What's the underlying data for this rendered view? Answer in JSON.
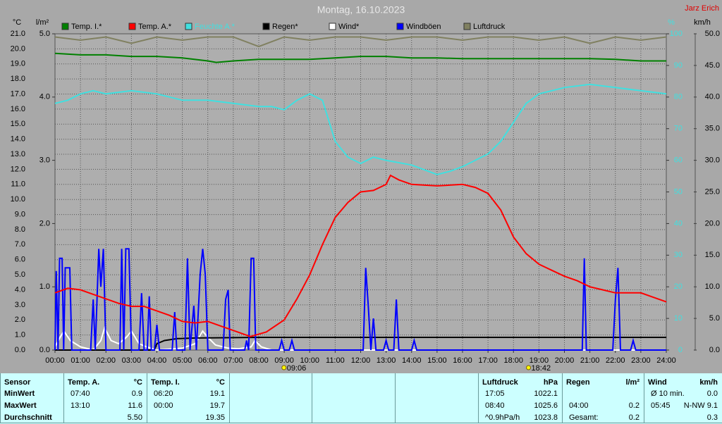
{
  "chart_data": {
    "type": "line",
    "title": "Montag, 16.10.2023",
    "author": "Jarz Erich",
    "y_label": "°C",
    "y2_label": "l/m²",
    "y3_label": "%",
    "y4_label": "km/h",
    "xlim": [
      0,
      24
    ],
    "xticks": [
      {
        "value": 0,
        "label": "00:00"
      },
      {
        "value": 1,
        "label": "01:00"
      },
      {
        "value": 2,
        "label": "02:00"
      },
      {
        "value": 3,
        "label": "03:00"
      },
      {
        "value": 4,
        "label": "04:00"
      },
      {
        "value": 5,
        "label": "05:00"
      },
      {
        "value": 6,
        "label": "06:00"
      },
      {
        "value": 7,
        "label": "07:00"
      },
      {
        "value": 8,
        "label": "08:00"
      },
      {
        "value": 9,
        "label": "09:00"
      },
      {
        "value": 10,
        "label": "10:00"
      },
      {
        "value": 11,
        "label": "11:00"
      },
      {
        "value": 12,
        "label": "12:00"
      },
      {
        "value": 13,
        "label": "13:00"
      },
      {
        "value": 14,
        "label": "14:00"
      },
      {
        "value": 15,
        "label": "15:00"
      },
      {
        "value": 16,
        "label": "16:00"
      },
      {
        "value": 17,
        "label": "17:00"
      },
      {
        "value": 18,
        "label": "18:00"
      },
      {
        "value": 19,
        "label": "19:00"
      },
      {
        "value": 20,
        "label": "20:00"
      },
      {
        "value": 21,
        "label": "21:00"
      },
      {
        "value": 22,
        "label": "22:00"
      },
      {
        "value": 23,
        "label": "23:00"
      },
      {
        "value": 24,
        "label": "24:00"
      }
    ],
    "ylim": [
      0,
      21
    ],
    "yticks": [
      {
        "value": 0,
        "label": "0.0"
      },
      {
        "value": 1,
        "label": "1.0"
      },
      {
        "value": 2,
        "label": "2.0"
      },
      {
        "value": 3,
        "label": "3.0"
      },
      {
        "value": 4,
        "label": "4.0"
      },
      {
        "value": 5,
        "label": "5.0"
      },
      {
        "value": 6,
        "label": "6.0"
      },
      {
        "value": 7,
        "label": "7.0"
      },
      {
        "value": 8,
        "label": "8.0"
      },
      {
        "value": 9,
        "label": "9.0"
      },
      {
        "value": 10,
        "label": "10.0"
      },
      {
        "value": 11,
        "label": "11.0"
      },
      {
        "value": 12,
        "label": "12.0"
      },
      {
        "value": 13,
        "label": "13.0"
      },
      {
        "value": 14,
        "label": "14.0"
      },
      {
        "value": 15,
        "label": "15.0"
      },
      {
        "value": 16,
        "label": "16.0"
      },
      {
        "value": 17,
        "label": "17.0"
      },
      {
        "value": 18,
        "label": "18.0"
      },
      {
        "value": 19,
        "label": "19.0"
      },
      {
        "value": 20,
        "label": "20.0"
      },
      {
        "value": 21,
        "label": "21.0"
      }
    ],
    "y2lim": [
      0,
      5
    ],
    "y2ticks": [
      {
        "value": 0,
        "label": "0.0"
      },
      {
        "value": 1,
        "label": "1.0"
      },
      {
        "value": 2,
        "label": "2.0"
      },
      {
        "value": 3,
        "label": "3.0"
      },
      {
        "value": 4,
        "label": "4.0"
      },
      {
        "value": 5,
        "label": "5.0"
      }
    ],
    "y3lim": [
      0,
      100
    ],
    "y3ticks": [
      0,
      10,
      20,
      30,
      40,
      50,
      60,
      70,
      80,
      90,
      100
    ],
    "y4lim": [
      0,
      50
    ],
    "y4ticks": [
      {
        "value": 0,
        "label": "0.0"
      },
      {
        "value": 5,
        "label": "5.0"
      },
      {
        "value": 10,
        "label": "10.0"
      },
      {
        "value": 15,
        "label": "15.0"
      },
      {
        "value": 20,
        "label": "20.0"
      },
      {
        "value": 25,
        "label": "25.0"
      },
      {
        "value": 30,
        "label": "30.0"
      },
      {
        "value": 35,
        "label": "35.0"
      },
      {
        "value": 40,
        "label": "40.0"
      },
      {
        "value": 45,
        "label": "45.0"
      },
      {
        "value": 50,
        "label": "50.0"
      }
    ],
    "grid": true,
    "series": [
      {
        "name": "Temp. I.*",
        "color": "#008000",
        "axis": "y",
        "x": [
          0,
          1,
          2,
          3,
          4,
          5,
          6,
          6.33,
          7,
          8,
          9,
          10,
          11,
          12,
          13,
          14,
          15,
          16,
          17,
          18,
          19,
          20,
          21,
          22,
          23,
          24
        ],
        "values": [
          19.7,
          19.6,
          19.6,
          19.5,
          19.5,
          19.4,
          19.2,
          19.1,
          19.2,
          19.3,
          19.3,
          19.3,
          19.4,
          19.5,
          19.5,
          19.4,
          19.4,
          19.35,
          19.35,
          19.35,
          19.35,
          19.35,
          19.35,
          19.3,
          19.2,
          19.2
        ]
      },
      {
        "name": "Temp. A.*",
        "color": "#ff0000",
        "axis": "y",
        "x": [
          0,
          0.5,
          1,
          1.5,
          2,
          2.5,
          3,
          3.5,
          4,
          4.5,
          5,
          5.5,
          6,
          6.5,
          7,
          7.67,
          8.3,
          9,
          9.5,
          10,
          10.5,
          11,
          11.5,
          12,
          12.5,
          13,
          13.17,
          13.5,
          14,
          15,
          16,
          16.5,
          17,
          17.5,
          18,
          18.5,
          19,
          19.5,
          20,
          20.5,
          21,
          21.5,
          22,
          22.5,
          23,
          23.5,
          24
        ],
        "values": [
          3.8,
          4.1,
          4.0,
          3.7,
          3.4,
          3.1,
          2.9,
          2.9,
          2.6,
          2.3,
          1.9,
          1.8,
          1.9,
          1.6,
          1.3,
          0.9,
          1.2,
          2.0,
          3.4,
          5.0,
          7.0,
          8.8,
          9.8,
          10.5,
          10.6,
          11.0,
          11.6,
          11.3,
          11.0,
          10.9,
          11.0,
          10.8,
          10.4,
          9.3,
          7.5,
          6.4,
          5.7,
          5.3,
          4.9,
          4.6,
          4.2,
          4.0,
          3.8,
          3.8,
          3.8,
          3.5,
          3.2
        ]
      },
      {
        "name": "Feuchte A.*",
        "color": "#40e0e0",
        "axis": "y3",
        "x": [
          0,
          0.5,
          1,
          1.5,
          2,
          3,
          4,
          5,
          6,
          7,
          8,
          8.5,
          9,
          9.5,
          10,
          10.5,
          11,
          11.5,
          12,
          12.5,
          13,
          14,
          15,
          15.5,
          16,
          17,
          17.5,
          18,
          18.5,
          19,
          20,
          21,
          22,
          23,
          24
        ],
        "values": [
          78,
          79,
          81,
          82,
          81,
          82,
          81,
          79,
          79,
          78,
          77,
          77,
          76,
          79,
          81,
          79,
          66,
          61,
          59,
          61,
          60,
          58.5,
          55.5,
          56.5,
          58,
          62,
          66,
          72,
          78,
          81,
          83,
          84,
          83,
          82,
          81
        ]
      },
      {
        "name": "Regen*",
        "color": "#000000",
        "axis": "y2",
        "x": [
          0,
          3.9,
          4.0,
          4.3,
          4.8,
          5.5,
          8.0,
          24
        ],
        "values": [
          0,
          0,
          0.1,
          0.15,
          0.18,
          0.19,
          0.2,
          0.2
        ]
      },
      {
        "name": "Wind*",
        "color": "#ffffff",
        "axis": "y4",
        "x": [
          0,
          0.2,
          0.35,
          0.6,
          1.0,
          1.5,
          1.8,
          1.95,
          2.2,
          2.5,
          2.8,
          3.0,
          3.3,
          3.6,
          4.0,
          5.0,
          5.5,
          5.8,
          6.0,
          6.3,
          6.8,
          7.2,
          7.7,
          7.85,
          8.1,
          8.5,
          24
        ],
        "values": [
          0.5,
          2,
          3,
          1.5,
          0.5,
          0,
          1.5,
          3.5,
          1.5,
          1,
          2,
          3,
          1,
          0.5,
          0,
          0.3,
          1,
          3,
          2,
          0.8,
          0.3,
          0.2,
          0.5,
          1.5,
          0.5,
          0,
          0
        ]
      },
      {
        "name": "Windböen",
        "color": "#0000ff",
        "axis": "y4",
        "x": [
          0,
          0.05,
          0.12,
          0.18,
          0.28,
          0.34,
          0.4,
          0.58,
          0.66,
          1.4,
          1.5,
          1.58,
          1.72,
          1.8,
          1.9,
          2.0,
          2.55,
          2.62,
          2.7,
          2.78,
          2.9,
          3.0,
          3.3,
          3.4,
          3.5,
          3.62,
          3.7,
          3.78,
          3.9,
          4.0,
          4.1,
          4.6,
          4.7,
          4.78,
          5.1,
          5.2,
          5.3,
          5.45,
          5.55,
          5.7,
          5.8,
          5.9,
          6.0,
          6.6,
          6.7,
          6.8,
          6.88,
          7.45,
          7.52,
          7.6,
          7.7,
          7.8,
          7.88,
          8.8,
          8.9,
          9.0,
          9.2,
          9.3,
          9.4,
          12.1,
          12.2,
          12.3,
          12.4,
          12.5,
          12.6,
          12.9,
          13.0,
          13.1,
          13.3,
          13.4,
          13.5,
          14.0,
          14.1,
          14.2,
          20.7,
          20.78,
          20.86,
          21.9,
          22.0,
          22.1,
          22.2,
          22.6,
          22.7,
          22.8,
          24
        ],
        "values": [
          0,
          12.5,
          0,
          14.5,
          14.5,
          0,
          13,
          13,
          0,
          0,
          8,
          0,
          16,
          10,
          16,
          0,
          0,
          16,
          0,
          16,
          16,
          0,
          0,
          9,
          0,
          0,
          8.5,
          0,
          0,
          4,
          0,
          0,
          6,
          0,
          0,
          14.5,
          0,
          7,
          0,
          12,
          16,
          12,
          0,
          0,
          8,
          9.5,
          0,
          0,
          1.5,
          0,
          14.5,
          14.5,
          0,
          0,
          1.5,
          0,
          0,
          1.5,
          0,
          0,
          13,
          7,
          0,
          5,
          0,
          0,
          1.5,
          0,
          0,
          8,
          0,
          0,
          1.5,
          0,
          0,
          14.5,
          0,
          0,
          8,
          13,
          0,
          0,
          1.5,
          0,
          0
        ]
      },
      {
        "name": "Luftdruck",
        "color": "#808060",
        "axis": "y3",
        "x": [
          0,
          1,
          2,
          3,
          4,
          5,
          6,
          7,
          8,
          9,
          10,
          11,
          12,
          13,
          14,
          15,
          16,
          17,
          18,
          19,
          20,
          21,
          22,
          23,
          24
        ],
        "values": [
          99,
          98,
          99,
          97,
          99,
          98,
          99,
          99,
          96,
          99,
          98,
          99,
          99,
          98,
          99,
          99,
          98,
          99,
          99,
          98,
          99,
          97,
          99,
          98,
          99
        ]
      }
    ],
    "annotations": [
      {
        "x": 9.1,
        "label": "09:06"
      },
      {
        "x": 18.7,
        "label": "18:42"
      }
    ]
  },
  "table": {
    "columns": [
      "Sensor",
      "Temp. A.",
      "°C",
      "Temp. I.",
      "°C",
      "Luftdruck",
      "hPa",
      "Regen",
      "l/m²",
      "Wind",
      "km/h"
    ],
    "rows": [
      [
        "MinWert",
        "07:40",
        "0.9",
        "06:20",
        "19.1",
        "17:05",
        "1022.1",
        null,
        null,
        "Ø 10 min.",
        "0.0"
      ],
      [
        "MaxWert",
        "13:10",
        "11.6",
        "00:00",
        "19.7",
        "08:40",
        "1025.6",
        "04:00",
        "0.2",
        "05:45",
        "N-NW 9.1"
      ],
      [
        "Durchschnitt",
        null,
        "5.50",
        null,
        "19.35",
        "^0.9hPa/h",
        "1023.8",
        "Gesamt:",
        "0.2",
        null,
        "0.3"
      ]
    ]
  }
}
